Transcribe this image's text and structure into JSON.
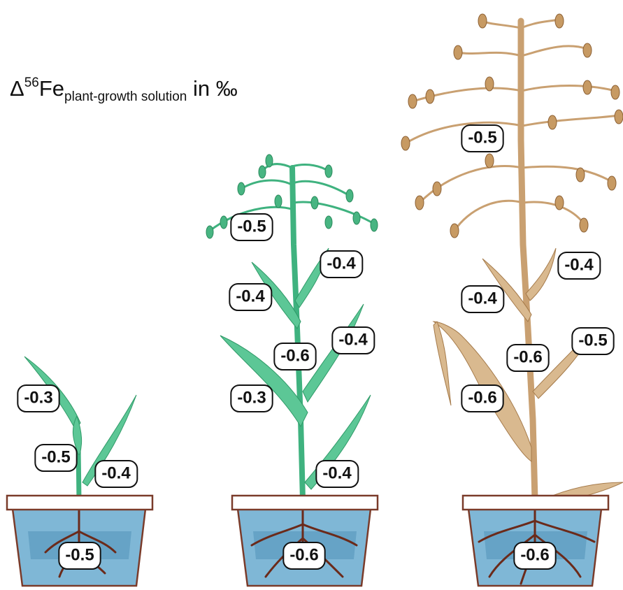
{
  "title": {
    "symbol": "Δ",
    "superscript": "56",
    "element": "Fe",
    "subscript": "plant-growth solution",
    "unit": "in ‰"
  },
  "plants": [
    {
      "shoot_labels": [
        "-0.3",
        "-0.5",
        "-0.4"
      ],
      "root_label": "-0.5"
    },
    {
      "shoot_labels": [
        "-0.5",
        "-0.4",
        "-0.4",
        "-0.6",
        "-0.4",
        "-0.3",
        "-0.4"
      ],
      "root_label": "-0.6"
    },
    {
      "shoot_labels": [
        "-0.5",
        "-0.4",
        "-0.4",
        "-0.6",
        "-0.5",
        "-0.6"
      ],
      "root_label": "-0.6"
    }
  ]
}
